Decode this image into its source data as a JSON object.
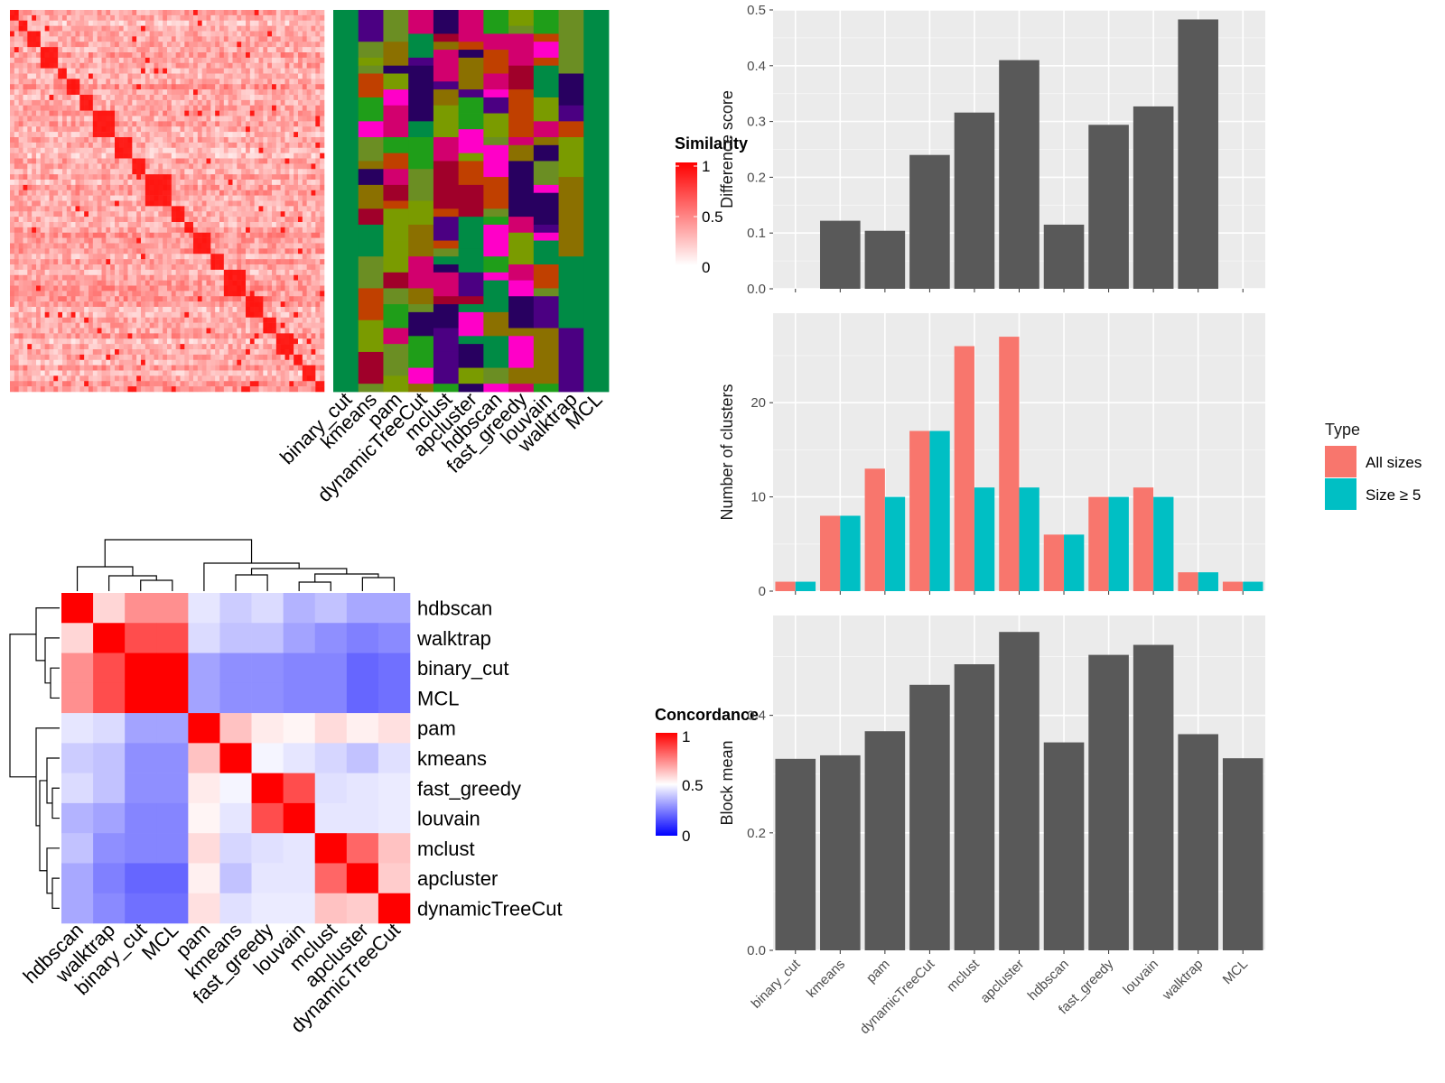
{
  "methods": [
    "binary_cut",
    "kmeans",
    "pam",
    "dynamicTreeCut",
    "mclust",
    "apcluster",
    "hdbscan",
    "fast_greedy",
    "louvain",
    "walktrap",
    "MCL"
  ],
  "similarity_legend": {
    "title": "Similarity",
    "ticks": [
      "1",
      "0.5",
      "0"
    ]
  },
  "concordance_legend": {
    "title": "Concordance",
    "ticks": [
      "1",
      "0.5",
      "0"
    ]
  },
  "colors": {
    "panel_bg": "#ebebeb",
    "grid": "#ffffff",
    "bar_dark": "#595959",
    "all_sizes": "#f8766d",
    "size_ge5": "#00bfc4",
    "heat_high": "#ff0000",
    "heat_mid": "#ffffff",
    "heat_low": "#0000ff",
    "cluster_palette": [
      "#008b45",
      "#1f9e19",
      "#6b8e23",
      "#ff00c8",
      "#4b0082",
      "#c04000",
      "#d2006e",
      "#a0002a",
      "#280060",
      "#7a9b00",
      "#8b7000"
    ]
  },
  "chart_data": [
    {
      "type": "heatmap",
      "panel": "similarity-heatmap",
      "legend": "Similarity",
      "scale": [
        0,
        1
      ],
      "diagonal_blocks": "red blocks along the diagonal, one per term group"
    },
    {
      "type": "heatmap",
      "panel": "cluster-membership",
      "columns": [
        "binary_cut",
        "kmeans",
        "pam",
        "dynamicTreeCut",
        "mclust",
        "apcluster",
        "hdbscan",
        "fast_greedy",
        "louvain",
        "walktrap",
        "MCL"
      ]
    },
    {
      "type": "heatmap",
      "panel": "concordance-heatmap",
      "legend": "Concordance",
      "scale": [
        0,
        1
      ],
      "row_order": [
        "hdbscan",
        "walktrap",
        "binary_cut",
        "MCL",
        "pam",
        "kmeans",
        "fast_greedy",
        "louvain",
        "mclust",
        "apcluster",
        "dynamicTreeCut"
      ],
      "col_order": [
        "hdbscan",
        "walktrap",
        "binary_cut",
        "MCL",
        "pam",
        "kmeans",
        "fast_greedy",
        "louvain",
        "mclust",
        "apcluster",
        "dynamicTreeCut"
      ],
      "values": [
        [
          1.0,
          0.58,
          0.72,
          0.72,
          0.45,
          0.4,
          0.43,
          0.35,
          0.38,
          0.33,
          0.33
        ],
        [
          0.58,
          1.0,
          0.85,
          0.85,
          0.43,
          0.38,
          0.38,
          0.32,
          0.28,
          0.25,
          0.27
        ],
        [
          0.72,
          0.85,
          1.0,
          1.0,
          0.32,
          0.28,
          0.28,
          0.26,
          0.26,
          0.2,
          0.22
        ],
        [
          0.72,
          0.85,
          1.0,
          1.0,
          0.32,
          0.28,
          0.28,
          0.26,
          0.26,
          0.2,
          0.22
        ],
        [
          0.45,
          0.43,
          0.32,
          0.32,
          1.0,
          0.62,
          0.54,
          0.52,
          0.57,
          0.53,
          0.56
        ],
        [
          0.4,
          0.38,
          0.28,
          0.28,
          0.62,
          1.0,
          0.48,
          0.45,
          0.42,
          0.38,
          0.44
        ],
        [
          0.43,
          0.38,
          0.28,
          0.28,
          0.54,
          0.48,
          1.0,
          0.85,
          0.44,
          0.45,
          0.46
        ],
        [
          0.35,
          0.32,
          0.26,
          0.26,
          0.52,
          0.45,
          0.85,
          1.0,
          0.45,
          0.45,
          0.46
        ],
        [
          0.38,
          0.28,
          0.26,
          0.26,
          0.57,
          0.42,
          0.44,
          0.45,
          1.0,
          0.8,
          0.62
        ],
        [
          0.33,
          0.25,
          0.2,
          0.2,
          0.53,
          0.38,
          0.45,
          0.45,
          0.8,
          1.0,
          0.6
        ],
        [
          0.33,
          0.27,
          0.22,
          0.22,
          0.56,
          0.44,
          0.46,
          0.46,
          0.62,
          0.6,
          1.0
        ]
      ]
    },
    {
      "type": "bar",
      "panel": "difference-score",
      "categories": [
        "binary_cut",
        "kmeans",
        "pam",
        "dynamicTreeCut",
        "mclust",
        "apcluster",
        "hdbscan",
        "fast_greedy",
        "louvain",
        "walktrap",
        "MCL"
      ],
      "values": [
        0.0,
        0.122,
        0.104,
        0.24,
        0.316,
        0.41,
        0.115,
        0.294,
        0.327,
        0.483,
        0.0
      ],
      "xlabel": "",
      "ylabel": "Difference score",
      "ylim": [
        0,
        0.5
      ],
      "yticks": [
        "0.0",
        "0.1",
        "0.2",
        "0.3",
        "0.4",
        "0.5"
      ],
      "grid": true
    },
    {
      "type": "bar",
      "panel": "number-of-clusters",
      "categories": [
        "binary_cut",
        "kmeans",
        "pam",
        "dynamicTreeCut",
        "mclust",
        "apcluster",
        "hdbscan",
        "fast_greedy",
        "louvain",
        "walktrap",
        "MCL"
      ],
      "series": [
        {
          "name": "All sizes",
          "values": [
            1,
            8,
            13,
            17,
            26,
            27,
            6,
            10,
            11,
            2,
            1
          ]
        },
        {
          "name": "Size ≥ 5",
          "values": [
            1,
            8,
            10,
            17,
            11,
            11,
            6,
            10,
            10,
            2,
            1
          ]
        }
      ],
      "ylabel": "Number of clusters",
      "ylim": [
        0,
        29.5
      ],
      "yticks": [
        "0",
        "10",
        "20"
      ],
      "legend": {
        "title": "Type",
        "position": "right"
      },
      "grid": true
    },
    {
      "type": "bar",
      "panel": "block-mean",
      "categories": [
        "binary_cut",
        "kmeans",
        "pam",
        "dynamicTreeCut",
        "mclust",
        "apcluster",
        "hdbscan",
        "fast_greedy",
        "louvain",
        "walktrap",
        "MCL"
      ],
      "values": [
        0.326,
        0.332,
        0.373,
        0.452,
        0.487,
        0.542,
        0.354,
        0.503,
        0.52,
        0.368,
        0.327
      ],
      "ylabel": "Block mean",
      "ylim": [
        0,
        0.57
      ],
      "yticks": [
        "0.0",
        "0.2",
        "0.4"
      ],
      "grid": true
    }
  ]
}
